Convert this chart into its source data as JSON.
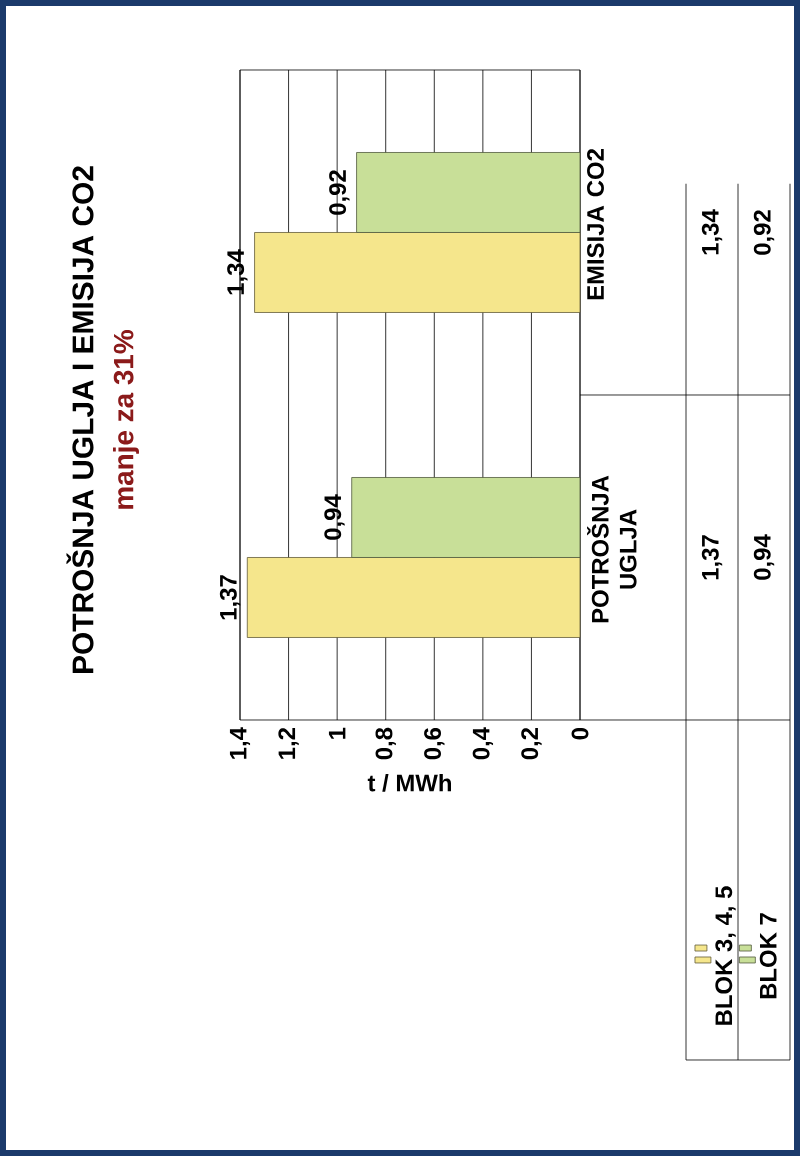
{
  "chart_data": {
    "type": "bar",
    "orientation": "horizontal",
    "title": "POTROŠNJA UGLJA I EMISIJA CO2",
    "subtitle": "manje za 31%",
    "xlabel": "t / MWh",
    "categories": [
      "EMISIJA CO2",
      "POTROŠNJA UGLJA"
    ],
    "series": [
      {
        "name": "BLOK 3, 4, 5",
        "color": "#f5e68c",
        "values": [
          1.34,
          1.37
        ],
        "value_labels": [
          "1,34",
          "1,37"
        ]
      },
      {
        "name": "BLOK 7",
        "color": "#c8df98",
        "values": [
          0.92,
          0.94
        ],
        "value_labels": [
          "0,92",
          "0,94"
        ]
      }
    ],
    "xlim": [
      1.4,
      0
    ],
    "xticks": [
      {
        "value": 0,
        "label": "0"
      },
      {
        "value": 0.2,
        "label": "0,2"
      },
      {
        "value": 0.4,
        "label": "0,4"
      },
      {
        "value": 0.6,
        "label": "0,6"
      },
      {
        "value": 0.8,
        "label": "0,8"
      },
      {
        "value": 1,
        "label": "1"
      },
      {
        "value": 1.2,
        "label": "1,2"
      },
      {
        "value": 1.4,
        "label": "1,4"
      }
    ],
    "grid": "x",
    "legend": "bottom right"
  }
}
